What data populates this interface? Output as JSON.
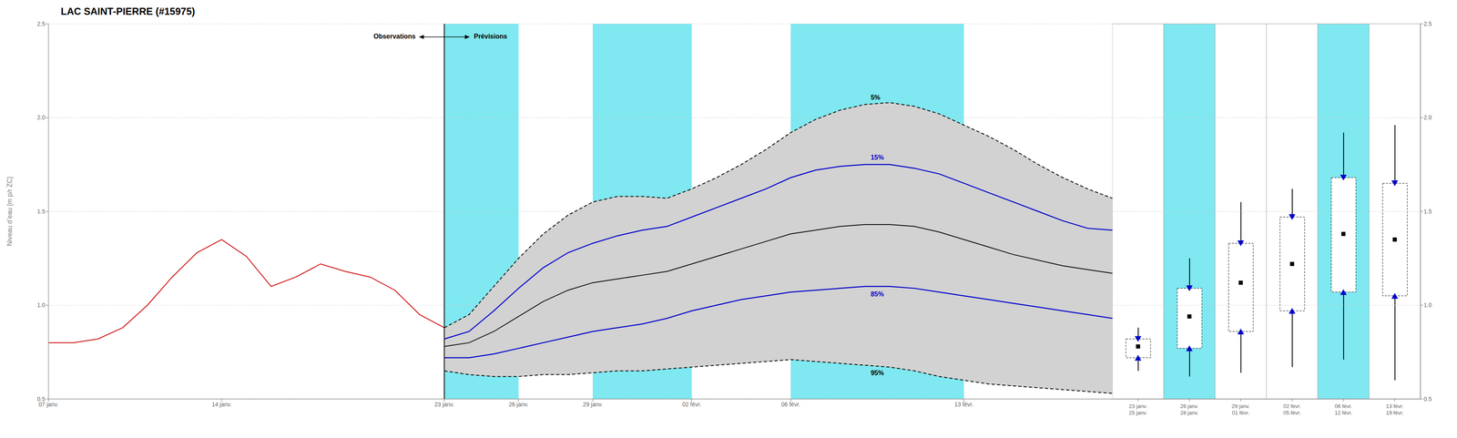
{
  "chart_data": [
    {
      "type": "line",
      "title": "LAC SAINT-PIERRE (#15975)",
      "y_label": "Niveau d’eau [m p/r ZC]",
      "xlim": [
        0,
        43
      ],
      "xticks": [
        {
          "value": 0,
          "label": "07 janv."
        },
        {
          "value": 7,
          "label": "14 janv."
        },
        {
          "value": 16,
          "label": "23 janv."
        },
        {
          "value": 19,
          "label": "26 janv."
        },
        {
          "value": 22,
          "label": "29 janv."
        },
        {
          "value": 26,
          "label": "02 févr."
        },
        {
          "value": 30,
          "label": "06 févr."
        },
        {
          "value": 37,
          "label": "13 févr."
        }
      ],
      "ylim": [
        0.5,
        2.5
      ],
      "yticks": [
        0.5,
        {
          "value": 1,
          "label": "1.0"
        },
        1.5,
        {
          "value": 2,
          "label": "2.0"
        },
        2.5
      ],
      "grid": true,
      "series": [
        {
          "x": [
            0,
            1,
            2,
            3,
            4,
            5,
            6,
            7,
            8,
            9,
            10,
            11,
            12,
            13,
            14,
            15,
            16
          ],
          "values": [
            0.8,
            0.8,
            0.82,
            0.88,
            1.0,
            1.15,
            1.28,
            1.35,
            1.26,
            1.1,
            1.15,
            1.22,
            1.18,
            1.15,
            1.08,
            0.95,
            0.88
          ],
          "color": "#cc0000",
          "line_style": "solid"
        },
        {
          "name": "5%",
          "x": [
            16,
            17,
            18,
            19,
            20,
            21,
            22,
            23,
            24,
            25,
            26,
            27,
            28,
            29,
            30,
            31,
            32,
            33,
            34,
            35,
            36,
            37,
            38,
            39,
            40,
            41,
            42,
            43
          ],
          "values": [
            0.88,
            0.95,
            1.1,
            1.25,
            1.38,
            1.48,
            1.55,
            1.58,
            1.58,
            1.57,
            1.62,
            1.68,
            1.75,
            1.83,
            1.92,
            1.99,
            2.04,
            2.07,
            2.08,
            2.06,
            2.02,
            1.96,
            1.9,
            1.83,
            1.75,
            1.68,
            1.62,
            1.57
          ],
          "color": "#000000",
          "line_style": "dashed"
        },
        {
          "name": "15%",
          "x": [
            16,
            17,
            18,
            19,
            20,
            21,
            22,
            23,
            24,
            25,
            26,
            27,
            28,
            29,
            30,
            31,
            32,
            33,
            34,
            35,
            36,
            37,
            38,
            39,
            40,
            41,
            42,
            43
          ],
          "values": [
            0.82,
            0.86,
            0.97,
            1.09,
            1.2,
            1.28,
            1.33,
            1.37,
            1.4,
            1.42,
            1.47,
            1.52,
            1.57,
            1.62,
            1.68,
            1.72,
            1.74,
            1.75,
            1.75,
            1.73,
            1.7,
            1.65,
            1.6,
            1.55,
            1.5,
            1.45,
            1.41,
            1.4
          ],
          "color": "#0000cc",
          "line_style": "solid"
        },
        {
          "x": [
            16,
            17,
            18,
            19,
            20,
            21,
            22,
            23,
            24,
            25,
            26,
            27,
            28,
            29,
            30,
            31,
            32,
            33,
            34,
            35,
            36,
            37,
            38,
            39,
            40,
            41,
            42,
            43
          ],
          "values": [
            0.78,
            0.8,
            0.86,
            0.94,
            1.02,
            1.08,
            1.12,
            1.14,
            1.16,
            1.18,
            1.22,
            1.26,
            1.3,
            1.34,
            1.38,
            1.4,
            1.42,
            1.43,
            1.43,
            1.42,
            1.39,
            1.35,
            1.31,
            1.27,
            1.24,
            1.21,
            1.19,
            1.17
          ],
          "color": "#000000",
          "line_style": "solid"
        },
        {
          "name": "85%",
          "x": [
            16,
            17,
            18,
            19,
            20,
            21,
            22,
            23,
            24,
            25,
            26,
            27,
            28,
            29,
            30,
            31,
            32,
            33,
            34,
            35,
            36,
            37,
            38,
            39,
            40,
            41,
            42,
            43
          ],
          "values": [
            0.72,
            0.72,
            0.74,
            0.77,
            0.8,
            0.83,
            0.86,
            0.88,
            0.9,
            0.93,
            0.97,
            1.0,
            1.03,
            1.05,
            1.07,
            1.08,
            1.09,
            1.1,
            1.1,
            1.09,
            1.07,
            1.05,
            1.03,
            1.01,
            0.99,
            0.97,
            0.95,
            0.93
          ],
          "color": "#0000cc",
          "line_style": "solid"
        },
        {
          "name": "95%",
          "x": [
            16,
            17,
            18,
            19,
            20,
            21,
            22,
            23,
            24,
            25,
            26,
            27,
            28,
            29,
            30,
            31,
            32,
            33,
            34,
            35,
            36,
            37,
            38,
            39,
            40,
            41,
            42,
            43
          ],
          "values": [
            0.65,
            0.63,
            0.62,
            0.62,
            0.63,
            0.63,
            0.64,
            0.65,
            0.65,
            0.66,
            0.67,
            0.68,
            0.69,
            0.7,
            0.71,
            0.7,
            0.69,
            0.68,
            0.67,
            0.65,
            0.62,
            0.6,
            0.58,
            0.57,
            0.56,
            0.55,
            0.54,
            0.53
          ],
          "color": "#000000",
          "line_style": "dashed"
        }
      ],
      "band": {
        "between": [
          "5%",
          "95%"
        ],
        "color": "#d2d2d2"
      },
      "spans": [
        {
          "from": 16,
          "to": 19
        },
        {
          "from": 22,
          "to": 26
        },
        {
          "from": 30,
          "to": 37
        }
      ],
      "span_color": "#7fe8f0",
      "divider": {
        "x": 16,
        "color": "#000000",
        "left_label": "Observations",
        "right_label": "Prévisions"
      }
    },
    {
      "type": "box",
      "categories": [
        "23 janv.\n25 janv.",
        "26 janv.\n28 janv.",
        "29 janv.\n01 févr.",
        "02 févr.\n05 févr.",
        "06 févr.\n12 févr.",
        "13 févr.\n19 févr."
      ],
      "p5": [
        0.88,
        1.25,
        1.55,
        1.62,
        1.92,
        1.96
      ],
      "p15": [
        0.82,
        1.09,
        1.33,
        1.47,
        1.68,
        1.65
      ],
      "median": [
        0.78,
        0.94,
        1.12,
        1.22,
        1.38,
        1.35
      ],
      "p85": [
        0.72,
        0.77,
        0.86,
        0.97,
        1.07,
        1.05
      ],
      "p95": [
        0.65,
        0.62,
        0.64,
        0.67,
        0.71,
        0.6
      ],
      "colors": [
        "#ffffff",
        "#7fe8f0",
        "#ffffff",
        "#ffffff",
        "#7fe8f0",
        "#ffffff"
      ],
      "marker_color": "#0000cc",
      "line_color": "#000000",
      "ylim": [
        0.5,
        2.5
      ],
      "yticks": [
        0.5,
        {
          "value": 1,
          "label": "1.0"
        },
        1.5,
        {
          "value": 2,
          "label": "2.0"
        },
        2.5
      ],
      "grid": true
    }
  ]
}
